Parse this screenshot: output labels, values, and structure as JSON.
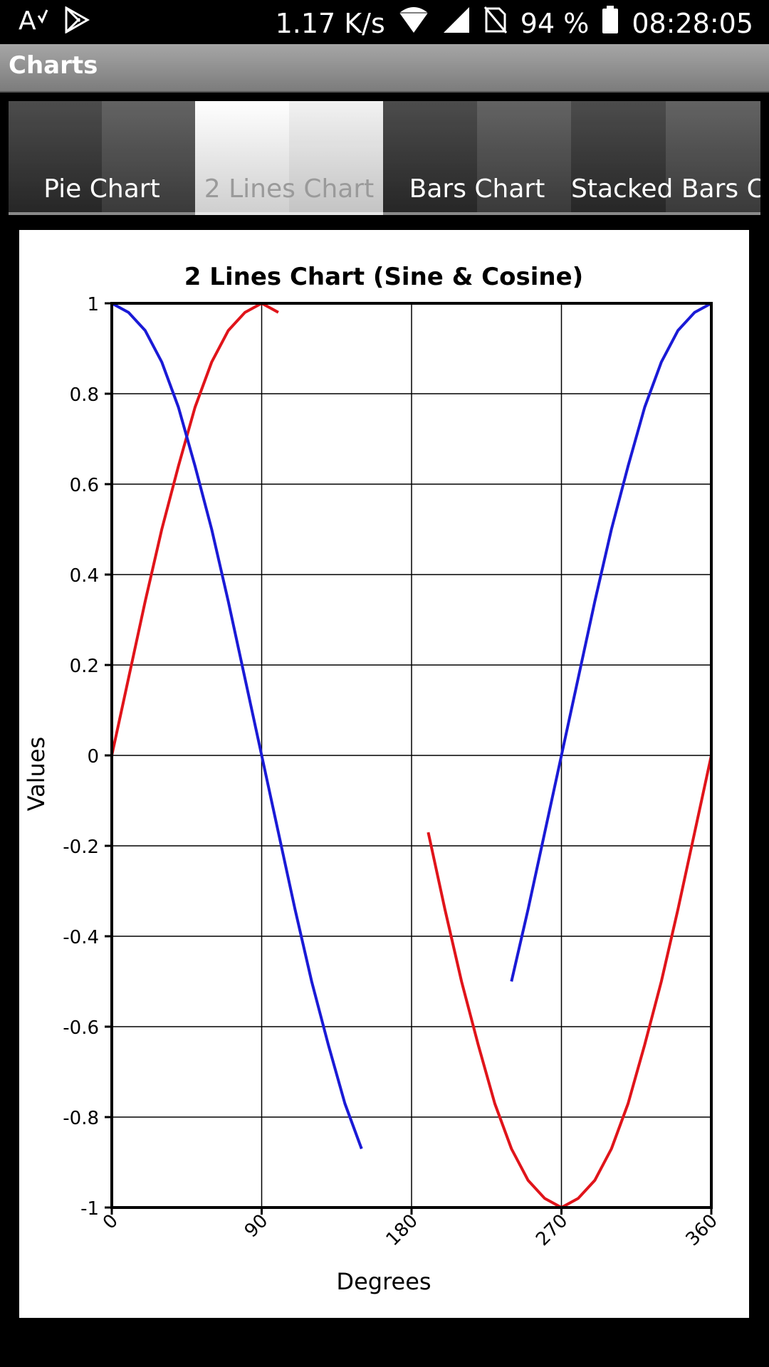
{
  "status_bar": {
    "speed": "1.17 K/s",
    "battery": "94 %",
    "time": "08:28:05"
  },
  "app_bar": {
    "title": "Charts"
  },
  "tabs": [
    {
      "label": "Pie Chart",
      "active": false
    },
    {
      "label": "2 Lines Chart",
      "active": true
    },
    {
      "label": "Bars Chart",
      "active": false
    },
    {
      "label": "Stacked Bars C..",
      "active": false
    }
  ],
  "chart_data": {
    "type": "line",
    "title": "2 Lines Chart (Sine & Cosine)",
    "xlabel": "Degrees",
    "ylabel": "Values",
    "xlim": [
      0,
      360
    ],
    "ylim": [
      -1,
      1
    ],
    "x_ticks": [
      "0",
      "90",
      "180",
      "270",
      "360"
    ],
    "y_ticks": [
      "1",
      "0.8",
      "0.6",
      "0.4",
      "0.2",
      "0",
      "-0.2",
      "-0.4",
      "-0.6",
      "-0.8",
      "-1"
    ],
    "grid": true,
    "colors": {
      "sine": "#e0141a",
      "cosine": "#1a1ad6"
    },
    "series": [
      {
        "segments": [
          {
            "x": [
              0,
              10,
              20,
              30,
              40,
              50,
              60,
              70,
              80,
              90,
              100
            ],
            "y": [
              0,
              0.17,
              0.34,
              0.5,
              0.64,
              0.77,
              0.87,
              0.94,
              0.98,
              1,
              0.98
            ]
          },
          {
            "x": [
              190,
              200,
              210,
              220,
              230,
              240,
              250,
              260,
              270,
              280,
              290,
              300,
              310,
              320,
              330,
              340,
              350,
              360
            ],
            "y": [
              -0.17,
              -0.34,
              -0.5,
              -0.64,
              -0.77,
              -0.87,
              -0.94,
              -0.98,
              -1,
              -0.98,
              -0.94,
              -0.87,
              -0.77,
              -0.64,
              -0.5,
              -0.34,
              -0.17,
              0
            ]
          }
        ]
      },
      {
        "segments": [
          {
            "x": [
              0,
              10,
              20,
              30,
              40,
              50,
              60,
              70,
              80,
              90,
              100,
              110,
              120,
              130,
              140,
              150
            ],
            "y": [
              1,
              0.98,
              0.94,
              0.87,
              0.77,
              0.64,
              0.5,
              0.34,
              0.17,
              0,
              -0.17,
              -0.34,
              -0.5,
              -0.64,
              -0.77,
              -0.87
            ]
          },
          {
            "x": [
              240,
              250,
              260,
              270,
              280,
              290,
              300,
              310,
              320,
              330,
              340,
              350,
              360
            ],
            "y": [
              -0.5,
              -0.34,
              -0.17,
              0,
              0.17,
              0.34,
              0.5,
              0.64,
              0.77,
              0.87,
              0.94,
              0.98,
              1
            ]
          }
        ]
      }
    ]
  }
}
